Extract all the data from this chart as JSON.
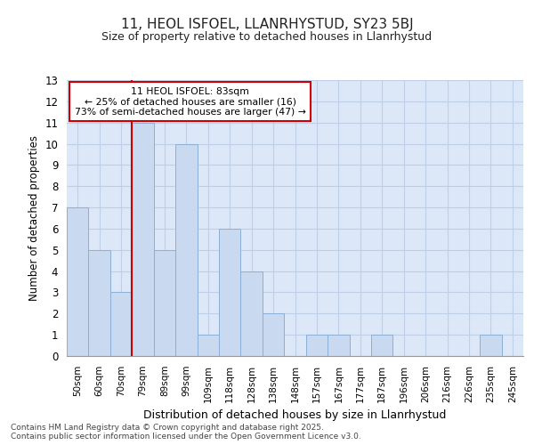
{
  "title1": "11, HEOL ISFOEL, LLANRHYSTUD, SY23 5BJ",
  "title2": "Size of property relative to detached houses in Llanrhystud",
  "xlabel": "Distribution of detached houses by size in Llanrhystud",
  "ylabel": "Number of detached properties",
  "categories": [
    "50sqm",
    "60sqm",
    "70sqm",
    "79sqm",
    "89sqm",
    "99sqm",
    "109sqm",
    "118sqm",
    "128sqm",
    "138sqm",
    "148sqm",
    "157sqm",
    "167sqm",
    "177sqm",
    "187sqm",
    "196sqm",
    "206sqm",
    "216sqm",
    "226sqm",
    "235sqm",
    "245sqm"
  ],
  "values": [
    7,
    5,
    3,
    11,
    5,
    10,
    1,
    6,
    4,
    2,
    0,
    1,
    1,
    0,
    1,
    0,
    0,
    0,
    0,
    1,
    0
  ],
  "bar_color": "#c9d9f0",
  "bar_edge_color": "#8bafd6",
  "ylim": [
    0,
    13
  ],
  "yticks": [
    0,
    1,
    2,
    3,
    4,
    5,
    6,
    7,
    8,
    9,
    10,
    11,
    12,
    13
  ],
  "red_line_index": 3,
  "annotation_text1": "11 HEOL ISFOEL: 83sqm",
  "annotation_text2": "← 25% of detached houses are smaller (16)",
  "annotation_text3": "73% of semi-detached houses are larger (47) →",
  "annotation_box_color": "#cc0000",
  "footer": "Contains HM Land Registry data © Crown copyright and database right 2025.\nContains public sector information licensed under the Open Government Licence v3.0.",
  "background_color": "#ffffff",
  "plot_bg_color": "#dce8f8",
  "grid_color": "#c0cfe8"
}
